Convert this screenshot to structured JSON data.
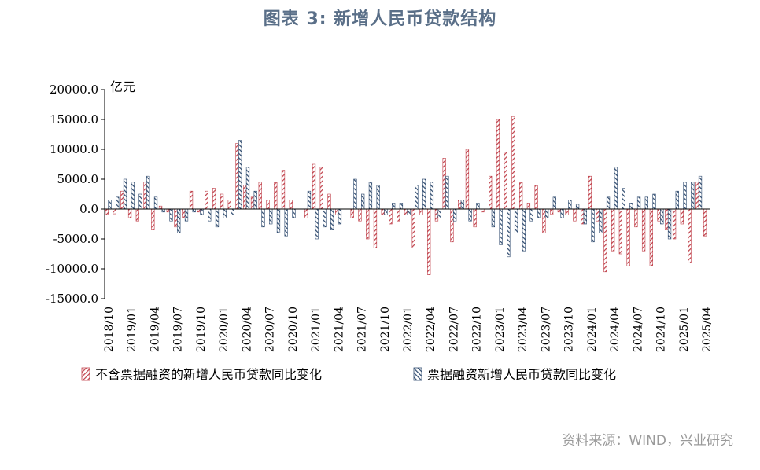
{
  "title": "图表 3: 新增人民币贷款结构",
  "source": "资料来源：WIND，兴业研究",
  "colors": {
    "series1": "#c0404a",
    "series2": "#2e4a6e",
    "title": "#5a6f88"
  },
  "chart_data": {
    "type": "bar",
    "unit": "亿元",
    "ylim": [
      -15000,
      20000
    ],
    "yticks": [
      "20000.0",
      "15000.0",
      "10000.0",
      "5000.0",
      "0.0",
      "-5000.0",
      "-10000.0",
      "-15000.0"
    ],
    "ytick_values": [
      20000,
      15000,
      10000,
      5000,
      0,
      -5000,
      -10000,
      -15000
    ],
    "categories": [
      "2018/10",
      "2018/11",
      "2018/12",
      "2019/01",
      "2019/02",
      "2019/03",
      "2019/04",
      "2019/05",
      "2019/06",
      "2019/07",
      "2019/08",
      "2019/09",
      "2019/10",
      "2019/11",
      "2019/12",
      "2020/01",
      "2020/02",
      "2020/03",
      "2020/04",
      "2020/05",
      "2020/06",
      "2020/07",
      "2020/08",
      "2020/09",
      "2020/10",
      "2020/11",
      "2020/12",
      "2021/01",
      "2021/02",
      "2021/03",
      "2021/04",
      "2021/05",
      "2021/06",
      "2021/07",
      "2021/08",
      "2021/09",
      "2021/10",
      "2021/11",
      "2021/12",
      "2022/01",
      "2022/02",
      "2022/03",
      "2022/04",
      "2022/05",
      "2022/06",
      "2022/07",
      "2022/08",
      "2022/09",
      "2022/10",
      "2022/11",
      "2022/12",
      "2023/01",
      "2023/02",
      "2023/03",
      "2023/04",
      "2023/05",
      "2023/06",
      "2023/07",
      "2023/08",
      "2023/09",
      "2023/10",
      "2023/11",
      "2023/12",
      "2024/01",
      "2024/02",
      "2024/03",
      "2024/04",
      "2024/05",
      "2024/06",
      "2024/07",
      "2024/08",
      "2024/09",
      "2024/10",
      "2024/11",
      "2024/12",
      "2025/01",
      "2025/02",
      "2025/03",
      "2025/04"
    ],
    "xtick_labels": [
      "2018/10",
      "2019/01",
      "2019/04",
      "2019/07",
      "2019/10",
      "2020/01",
      "2020/04",
      "2020/07",
      "2020/10",
      "2021/01",
      "2021/04",
      "2021/07",
      "2021/10",
      "2022/01",
      "2022/04",
      "2022/07",
      "2022/10",
      "2023/01",
      "2023/04",
      "2023/07",
      "2023/10",
      "2024/01",
      "2024/04",
      "2024/07",
      "2024/10",
      "2025/01",
      "2025/04"
    ],
    "series": [
      {
        "name": "不含票据融资的新增人民币贷款同比变化",
        "values": [
          -1000,
          -800,
          3000,
          -1500,
          -2000,
          4500,
          -3500,
          500,
          -500,
          -3000,
          -1500,
          3000,
          -500,
          3000,
          3500,
          2500,
          1500,
          11000,
          4000,
          2000,
          4500,
          1500,
          4500,
          6500,
          1500,
          0,
          -1500,
          7500,
          7000,
          2500,
          -1000,
          0,
          -1500,
          -2000,
          -5000,
          -6500,
          -1000,
          -2500,
          -2000,
          -1000,
          -6500,
          -1000,
          -11000,
          -2000,
          8500,
          -5500,
          1500,
          10000,
          -3000,
          -500,
          5500,
          15000,
          9500,
          15500,
          4500,
          1000,
          4000,
          -4000,
          -1000,
          -500,
          -1000,
          -2000,
          -2500,
          5500,
          -2000,
          -10500,
          -7000,
          -7500,
          -9500,
          -3000,
          -7000,
          -9500,
          -2000,
          -3500,
          -5000,
          -2500,
          -9000,
          4500,
          -4500
        ]
      },
      {
        "name": "票据融资新增人民币贷款同比变化",
        "values": [
          1500,
          2000,
          5000,
          4500,
          2500,
          5500,
          2000,
          -500,
          -2000,
          -4000,
          -2000,
          -500,
          -1000,
          -2000,
          -3000,
          -1500,
          -1000,
          11500,
          7000,
          3000,
          -3000,
          -2500,
          -4000,
          -4500,
          -1500,
          0,
          3000,
          -5000,
          -3000,
          -3500,
          -2500,
          0,
          5000,
          2500,
          4500,
          4000,
          -1000,
          1000,
          1000,
          -1000,
          4000,
          5000,
          4500,
          -1500,
          5500,
          -2000,
          1500,
          -2000,
          1000,
          0,
          -3000,
          -6000,
          -8000,
          -4000,
          -7000,
          -2000,
          -1500,
          -1500,
          2000,
          -1500,
          1500,
          800,
          -2500,
          -5500,
          -4000,
          2000,
          7000,
          3500,
          1000,
          2000,
          2000,
          2500,
          -2500,
          -5000,
          3000,
          4500,
          4500,
          5500,
          0
        ]
      }
    ],
    "legend_position": "bottom"
  }
}
